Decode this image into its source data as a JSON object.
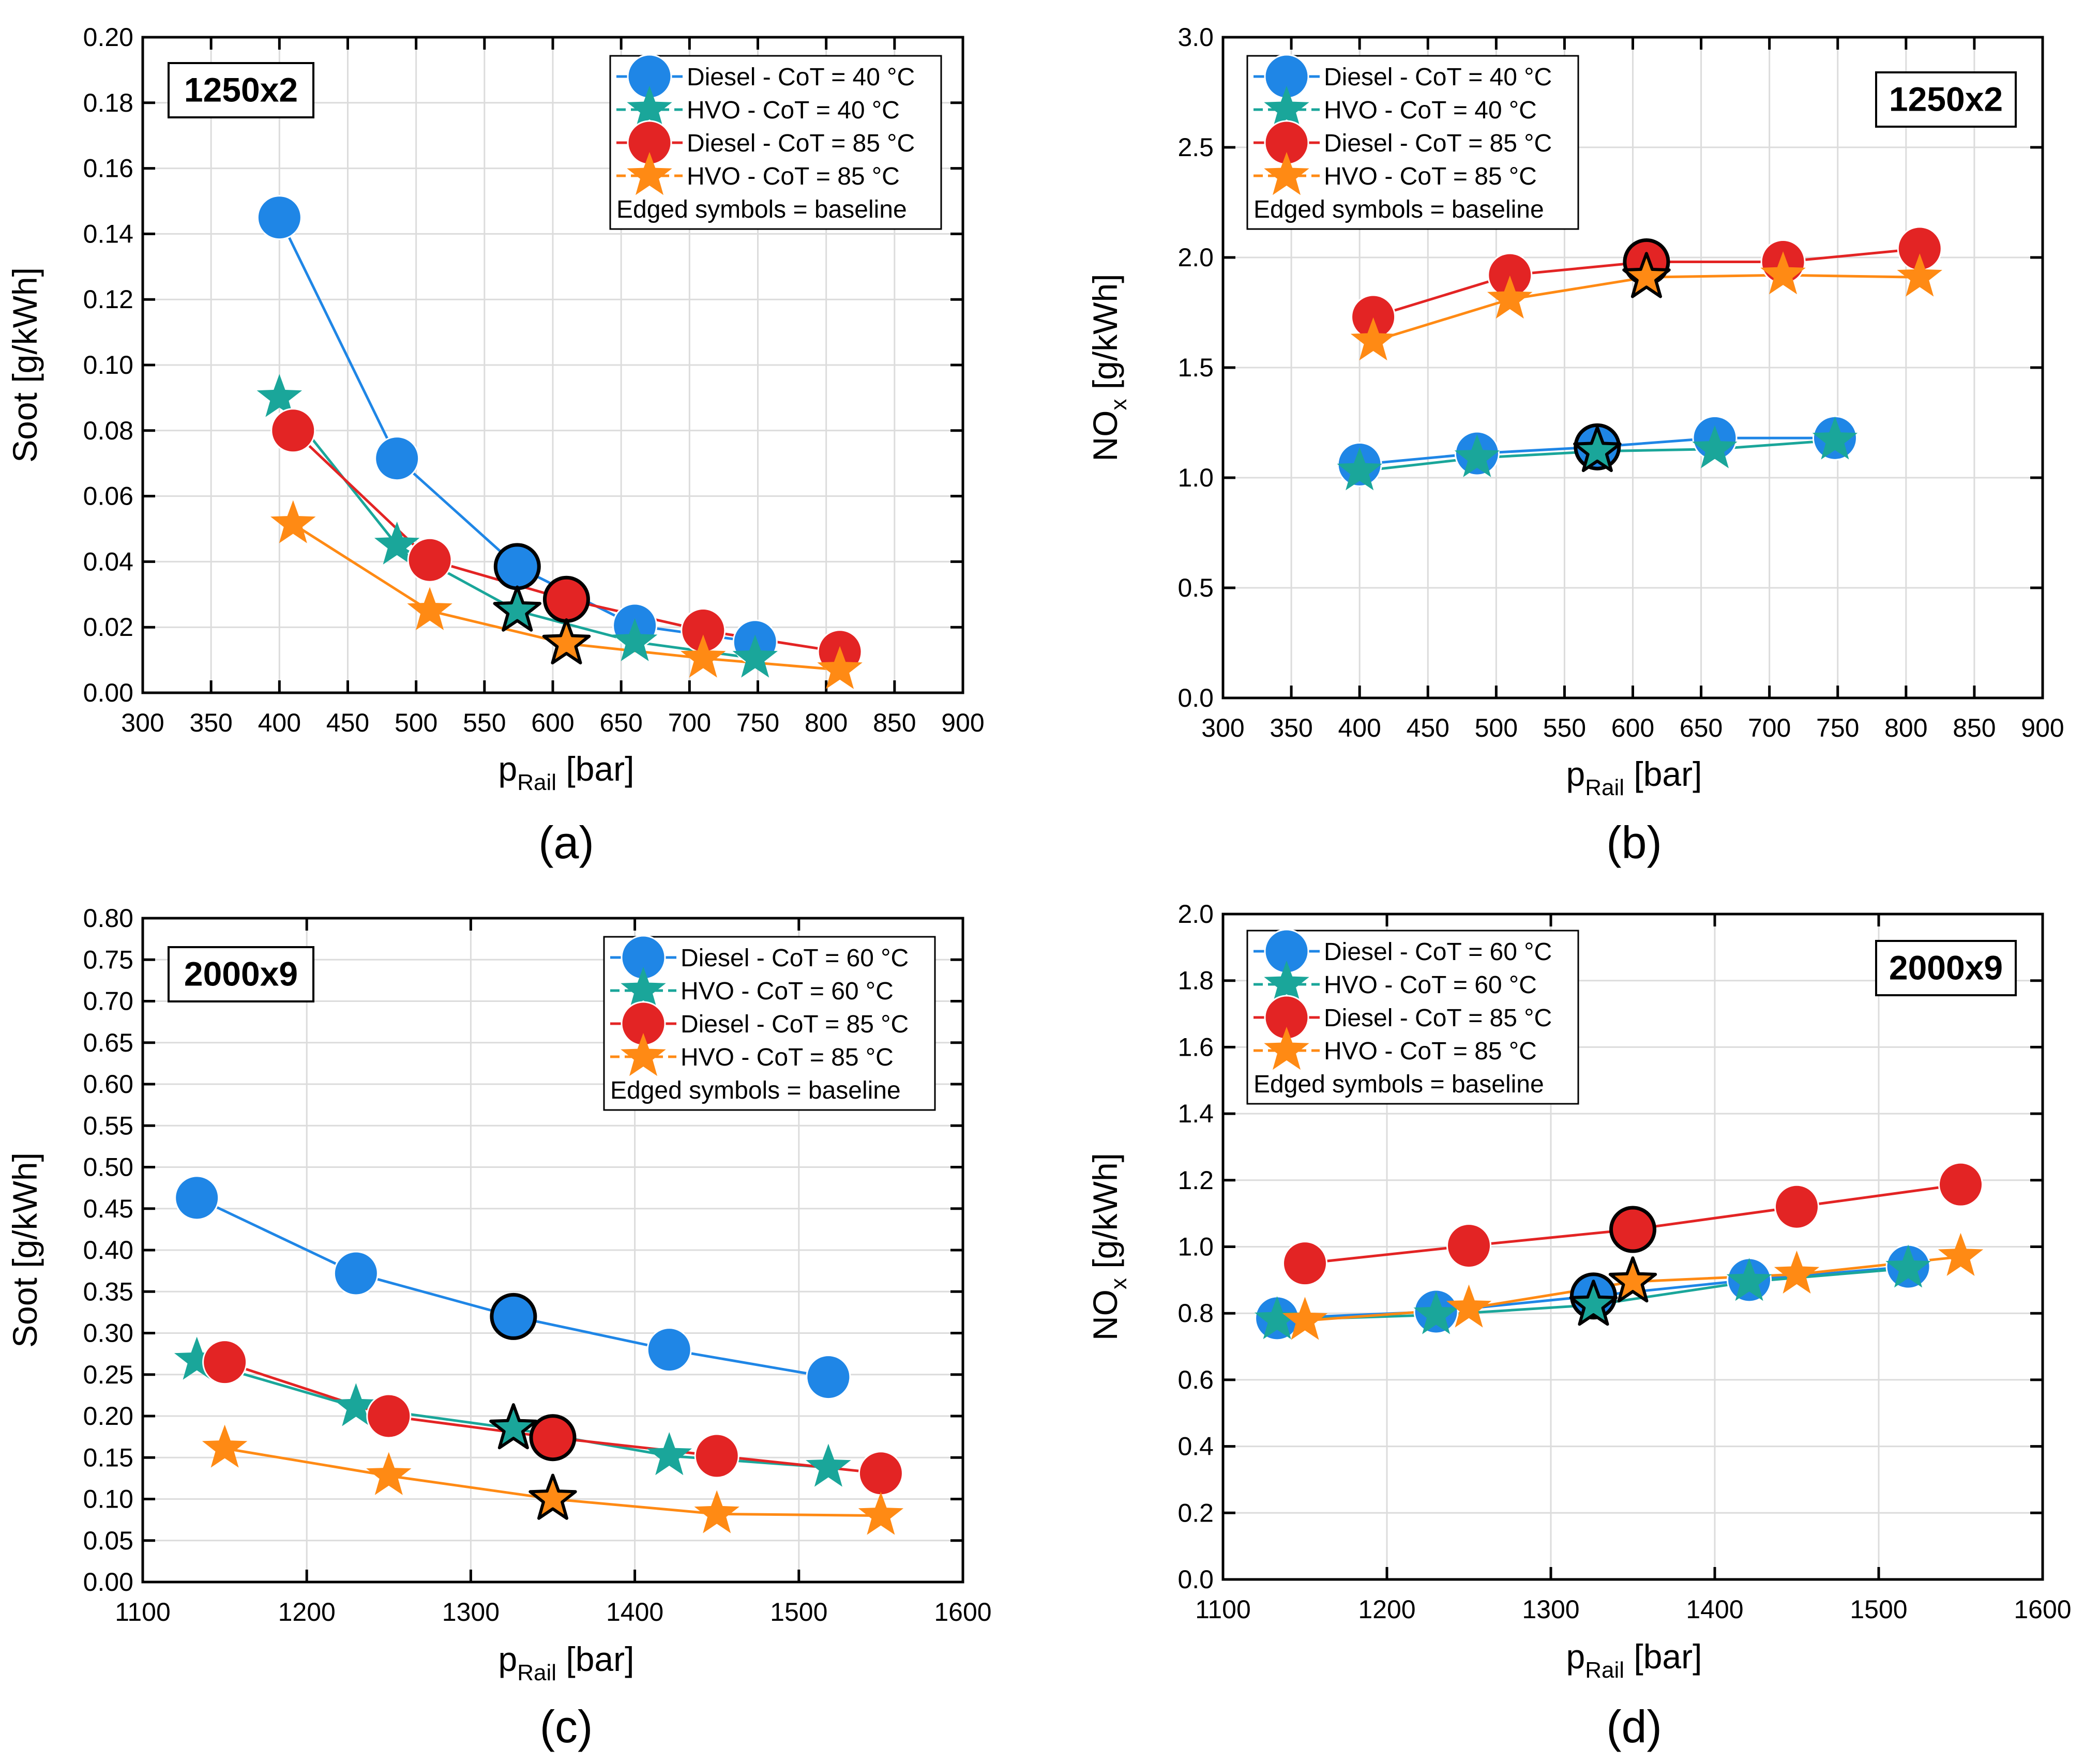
{
  "chart_data": [
    {
      "panel_label": "(a)",
      "type": "line",
      "title": "",
      "box_label": "1250x2",
      "xlabel_main": "p",
      "xlabel_sub": "Rail",
      "xlabel_unit": " [bar]",
      "ylabel_main": "Soot [g/kWh]",
      "ylabel_sub": "",
      "ylabel_unit": "",
      "xlim": [
        300,
        900
      ],
      "xticks": [
        300,
        350,
        400,
        450,
        500,
        550,
        600,
        650,
        700,
        750,
        800,
        850,
        900
      ],
      "xtick_labels": [
        "300",
        "350",
        "400",
        "450",
        "500",
        "550",
        "600",
        "650",
        "700",
        "750",
        "800",
        "850",
        "900"
      ],
      "ylim": [
        0,
        0.2
      ],
      "yticks": [
        0,
        0.02,
        0.04,
        0.06,
        0.08,
        0.1,
        0.12,
        0.14,
        0.16,
        0.18,
        0.2
      ],
      "ytick_labels": [
        "0.00",
        "0.02",
        "0.04",
        "0.06",
        "0.08",
        "0.10",
        "0.12",
        "0.14",
        "0.16",
        "0.18",
        "0.20"
      ],
      "legend_position": "top-right",
      "legend_note": "Edged symbols = baseline",
      "series": [
        {
          "name": "Diesel - CoT = 40 °C",
          "color": "#1f86e6",
          "marker": "circle",
          "x": [
            400,
            486,
            574,
            660,
            748
          ],
          "y": [
            0.145,
            0.0715,
            0.0385,
            0.0205,
            0.0155
          ],
          "baseline_index": 2
        },
        {
          "name": "HVO - CoT = 40 °C",
          "color": "#1aa69a",
          "marker": "star",
          "x": [
            400,
            486,
            574,
            660,
            748
          ],
          "y": [
            0.09,
            0.045,
            0.025,
            0.0155,
            0.0105
          ],
          "baseline_index": 2
        },
        {
          "name": "Diesel - CoT = 85 °C",
          "color": "#e32424",
          "marker": "circle",
          "x": [
            410,
            510,
            610,
            710,
            810
          ],
          "y": [
            0.08,
            0.0405,
            0.0285,
            0.019,
            0.0125
          ],
          "baseline_index": 2
        },
        {
          "name": "HVO - CoT = 85 °C",
          "color": "#ff8a14",
          "marker": "star",
          "x": [
            410,
            510,
            610,
            710,
            810
          ],
          "y": [
            0.0515,
            0.025,
            0.015,
            0.0105,
            0.007
          ],
          "baseline_index": 2
        }
      ]
    },
    {
      "panel_label": "(b)",
      "type": "line",
      "title": "",
      "box_label": "1250x2",
      "xlabel_main": "p",
      "xlabel_sub": "Rail",
      "xlabel_unit": " [bar]",
      "ylabel_main": "NO",
      "ylabel_sub": "x",
      "ylabel_unit": " [g/kWh]",
      "xlim": [
        300,
        900
      ],
      "xticks": [
        300,
        350,
        400,
        450,
        500,
        550,
        600,
        650,
        700,
        750,
        800,
        850,
        900
      ],
      "xtick_labels": [
        "300",
        "350",
        "400",
        "450",
        "500",
        "550",
        "600",
        "650",
        "700",
        "750",
        "800",
        "850",
        "900"
      ],
      "ylim": [
        0,
        3
      ],
      "yticks": [
        0,
        0.5,
        1,
        1.5,
        2,
        2.5,
        3
      ],
      "ytick_labels": [
        "0.0",
        "0.5",
        "1.0",
        "1.5",
        "2.0",
        "2.5",
        "3.0"
      ],
      "legend_position": "top-left",
      "legend_note": "Edged symbols = baseline",
      "series": [
        {
          "name": "Diesel - CoT = 40 °C",
          "color": "#1f86e6",
          "marker": "circle",
          "x": [
            400,
            486,
            574,
            660,
            748
          ],
          "y": [
            1.06,
            1.11,
            1.14,
            1.18,
            1.18
          ],
          "baseline_index": 2
        },
        {
          "name": "HVO - CoT = 40 °C",
          "color": "#1aa69a",
          "marker": "star",
          "x": [
            400,
            486,
            574,
            660,
            748
          ],
          "y": [
            1.03,
            1.09,
            1.12,
            1.13,
            1.17
          ],
          "baseline_index": 2
        },
        {
          "name": "Diesel - CoT = 85 °C",
          "color": "#e32424",
          "marker": "circle",
          "x": [
            410,
            510,
            610,
            710,
            810
          ],
          "y": [
            1.73,
            1.92,
            1.98,
            1.98,
            2.04
          ],
          "baseline_index": 2
        },
        {
          "name": "HVO - CoT = 85 °C",
          "color": "#ff8a14",
          "marker": "star",
          "x": [
            410,
            510,
            610,
            710,
            810
          ],
          "y": [
            1.62,
            1.81,
            1.91,
            1.92,
            1.91
          ],
          "baseline_index": 2
        }
      ]
    },
    {
      "panel_label": "(c)",
      "type": "line",
      "title": "",
      "box_label": "2000x9",
      "xlabel_main": "p",
      "xlabel_sub": "Rail",
      "xlabel_unit": " [bar]",
      "ylabel_main": "Soot [g/kWh]",
      "ylabel_sub": "",
      "ylabel_unit": "",
      "xlim": [
        1100,
        1600
      ],
      "xticks": [
        1100,
        1200,
        1300,
        1400,
        1500,
        1600
      ],
      "xtick_labels": [
        "1100",
        "1200",
        "1300",
        "1400",
        "1500",
        "1600"
      ],
      "ylim": [
        0,
        0.8
      ],
      "yticks": [
        0,
        0.05,
        0.1,
        0.15,
        0.2,
        0.25,
        0.3,
        0.35,
        0.4,
        0.45,
        0.5,
        0.55,
        0.6,
        0.65,
        0.7,
        0.75,
        0.8
      ],
      "ytick_labels": [
        "0.00",
        "0.05",
        "0.10",
        "0.15",
        "0.20",
        "0.25",
        "0.30",
        "0.35",
        "0.40",
        "0.45",
        "0.50",
        "0.55",
        "0.60",
        "0.65",
        "0.70",
        "0.75",
        "0.80"
      ],
      "legend_position": "top-right",
      "legend_note": "Edged symbols = baseline",
      "series": [
        {
          "name": "Diesel - CoT = 60 °C",
          "color": "#1f86e6",
          "marker": "circle",
          "x": [
            1133,
            1230,
            1326,
            1421,
            1518
          ],
          "y": [
            0.463,
            0.372,
            0.32,
            0.28,
            0.247
          ],
          "baseline_index": 2
        },
        {
          "name": "HVO - CoT = 60 °C",
          "color": "#1aa69a",
          "marker": "star",
          "x": [
            1133,
            1230,
            1326,
            1421,
            1518
          ],
          "y": [
            0.267,
            0.211,
            0.185,
            0.152,
            0.138
          ],
          "baseline_index": 2
        },
        {
          "name": "Diesel - CoT = 85 °C",
          "color": "#e32424",
          "marker": "circle",
          "x": [
            1150,
            1250,
            1350,
            1450,
            1550
          ],
          "y": [
            0.265,
            0.2,
            0.174,
            0.152,
            0.131
          ],
          "baseline_index": 2
        },
        {
          "name": "HVO - CoT = 85 °C",
          "color": "#ff8a14",
          "marker": "star",
          "x": [
            1150,
            1250,
            1350,
            1450,
            1550
          ],
          "y": [
            0.161,
            0.128,
            0.1,
            0.082,
            0.08
          ],
          "baseline_index": 2
        }
      ]
    },
    {
      "panel_label": "(d)",
      "type": "line",
      "title": "",
      "box_label": "2000x9",
      "xlabel_main": "p",
      "xlabel_sub": "Rail",
      "xlabel_unit": " [bar]",
      "ylabel_main": "NO",
      "ylabel_sub": "x",
      "ylabel_unit": " [g/kWh]",
      "xlim": [
        1100,
        1600
      ],
      "xticks": [
        1100,
        1200,
        1300,
        1400,
        1500,
        1600
      ],
      "xtick_labels": [
        "1100",
        "1200",
        "1300",
        "1400",
        "1500",
        "1600"
      ],
      "ylim": [
        0,
        2
      ],
      "yticks": [
        0,
        0.2,
        0.4,
        0.6,
        0.8,
        1,
        1.2,
        1.4,
        1.6,
        1.8,
        2
      ],
      "ytick_labels": [
        "0.0",
        "0.2",
        "0.4",
        "0.6",
        "0.8",
        "1.0",
        "1.2",
        "1.4",
        "1.6",
        "1.8",
        "2.0"
      ],
      "legend_position": "top-left",
      "legend_note": "Edged symbols = baseline",
      "series": [
        {
          "name": "Diesel - CoT = 60 °C",
          "color": "#1f86e6",
          "marker": "circle",
          "x": [
            1133,
            1230,
            1326,
            1421,
            1518
          ],
          "y": [
            0.785,
            0.805,
            0.852,
            0.9,
            0.94
          ],
          "baseline_index": 2
        },
        {
          "name": "HVO - CoT = 60 °C",
          "color": "#1aa69a",
          "marker": "star",
          "x": [
            1133,
            1230,
            1326,
            1421,
            1518
          ],
          "y": [
            0.78,
            0.795,
            0.825,
            0.895,
            0.935
          ],
          "baseline_index": 2
        },
        {
          "name": "Diesel - CoT = 85 °C",
          "color": "#e32424",
          "marker": "circle",
          "x": [
            1150,
            1250,
            1350,
            1450,
            1550
          ],
          "y": [
            0.95,
            1.003,
            1.052,
            1.12,
            1.187
          ],
          "baseline_index": 2
        },
        {
          "name": "HVO - CoT = 85 °C",
          "color": "#ff8a14",
          "marker": "star",
          "x": [
            1150,
            1250,
            1350,
            1450,
            1550
          ],
          "y": [
            0.778,
            0.815,
            0.895,
            0.917,
            0.97
          ],
          "baseline_index": 2
        }
      ]
    }
  ]
}
